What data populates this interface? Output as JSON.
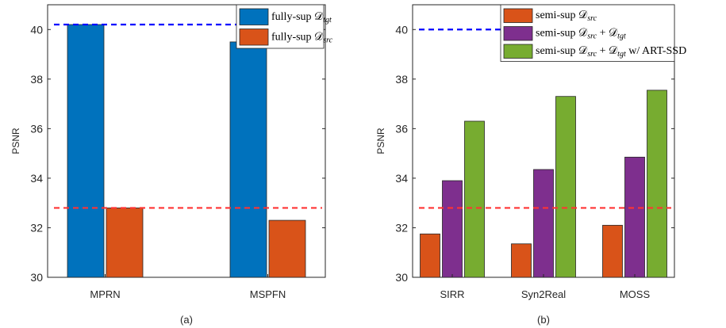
{
  "chart_data": [
    {
      "type": "bar",
      "subtitle": "(a)",
      "ylabel": "PSNR",
      "xlabel": "",
      "ylim": [
        30,
        41
      ],
      "yticks": [
        30,
        32,
        34,
        36,
        38,
        40
      ],
      "categories": [
        "MPRN",
        "MSPFN"
      ],
      "series": [
        {
          "name": "fully-sup 𝒟",
          "name_sub": "tgt",
          "color": "#0072BD",
          "values": [
            40.2,
            39.5
          ]
        },
        {
          "name": "fully-sup 𝒟",
          "name_sub": "src",
          "color": "#D95319",
          "values": [
            32.8,
            32.3
          ]
        }
      ],
      "reference_lines": [
        {
          "y": 40.2,
          "color": "#0000FF"
        },
        {
          "y": 32.8,
          "color": "#FF3333"
        }
      ],
      "legend_position": "top-right",
      "grid": false
    },
    {
      "type": "bar",
      "subtitle": "(b)",
      "ylabel": "PSNR",
      "xlabel": "",
      "ylim": [
        30,
        41
      ],
      "yticks": [
        30,
        32,
        34,
        36,
        38,
        40
      ],
      "categories": [
        "SIRR",
        "Syn2Real",
        "MOSS"
      ],
      "series": [
        {
          "name": "semi-sup 𝒟",
          "name_sub": "src",
          "color": "#D95319",
          "values": [
            31.75,
            31.35,
            32.1
          ]
        },
        {
          "name": "semi-sup 𝒟",
          "name_sub": "src",
          "name_suffix": " + 𝒟",
          "name_suffix_sub": "tgt",
          "color": "#7E2F8E",
          "values": [
            33.9,
            34.35,
            34.85
          ]
        },
        {
          "name": "semi-sup 𝒟",
          "name_sub": "src",
          "name_suffix": " + 𝒟",
          "name_suffix_sub": "tgt",
          "name_tail": " w/ ART-SSD",
          "color": "#77AC30",
          "values": [
            36.3,
            37.3,
            37.55
          ]
        }
      ],
      "reference_lines": [
        {
          "y": 40.0,
          "color": "#0000FF"
        },
        {
          "y": 32.8,
          "color": "#FF3333"
        }
      ],
      "legend_position": "top-right",
      "grid": false
    }
  ]
}
